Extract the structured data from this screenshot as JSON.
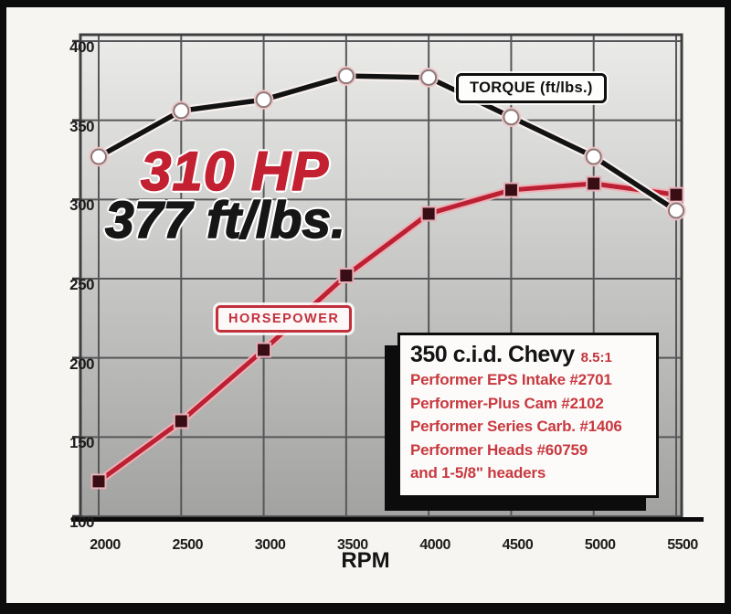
{
  "headline": {
    "hp": "310 HP",
    "torque": "377 ft/lbs."
  },
  "legends": {
    "torque": "TORQUE (ft/lbs.)",
    "horsepower": "HORSEPOWER"
  },
  "spec_box": {
    "title": "350 c.i.d. Chevy",
    "compression": "8.5:1",
    "lines": [
      "Performer EPS Intake #2701",
      "Performer-Plus Cam #2102",
      "Performer Series Carb. #1406",
      "Performer Heads #60759",
      "and 1-5/8\" headers"
    ]
  },
  "chart_data": {
    "type": "line",
    "xlabel": "RPM",
    "x": [
      2000,
      2500,
      3000,
      3500,
      4000,
      4500,
      5000,
      5500
    ],
    "xticks": [
      2000,
      2500,
      3000,
      3500,
      4000,
      4500,
      5000,
      5500
    ],
    "yticks": [
      100,
      150,
      200,
      250,
      300,
      350,
      400
    ],
    "ylim": [
      100,
      400
    ],
    "xlim": [
      1890,
      5530
    ],
    "grid": true,
    "legend_position": "on-curve-callouts",
    "series": [
      {
        "name": "TORQUE (ft/lbs.)",
        "marker": "circle",
        "line_color": "#121212",
        "marker_fill": "#ffffff",
        "marker_edge": "#8a7a7a",
        "values": [
          327,
          356,
          363,
          378,
          377,
          352,
          327,
          293
        ]
      },
      {
        "name": "HORSEPOWER",
        "marker": "square",
        "line_color": "#bb2033",
        "marker_fill": "#380d13",
        "marker_edge": "#e8b0b8",
        "values": [
          122,
          160,
          205,
          252,
          291,
          306,
          310,
          303
        ]
      }
    ],
    "colors": {
      "plot_bg_top": "#ebebe9",
      "plot_bg_bottom": "#a2a2a0",
      "grid": "#57575a",
      "plot_border": "#3f3f42",
      "bottom_axis": "#0a0a0a",
      "red_underlay": "#eeb0b6",
      "black_underlay": "#f5f0ee"
    }
  }
}
